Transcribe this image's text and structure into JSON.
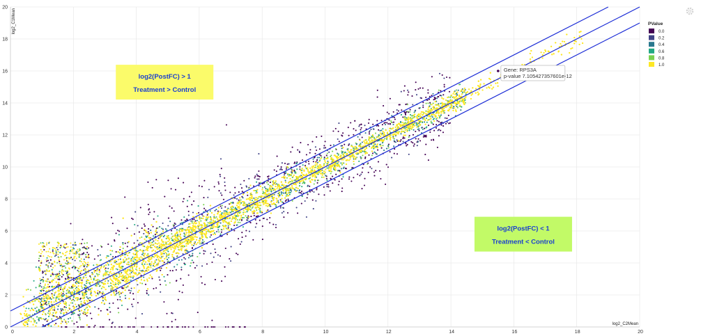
{
  "chart_data": {
    "type": "scatter",
    "xlabel": "log2_C2Mean",
    "ylabel": "log2_C1Mean",
    "xlim": [
      0,
      20
    ],
    "ylim": [
      0,
      20
    ],
    "xticks": [
      "0",
      "2",
      "4",
      "6",
      "8",
      "10",
      "12",
      "14",
      "16",
      "18",
      "20"
    ],
    "yticks": [
      "0",
      "2",
      "4",
      "6",
      "8",
      "10",
      "12",
      "14",
      "16",
      "18",
      "20"
    ],
    "grid": true,
    "lines": [
      {
        "intercept": 1,
        "slope": 1
      },
      {
        "intercept": 0,
        "slope": 1
      },
      {
        "intercept": -1,
        "slope": 1
      }
    ],
    "legend": {
      "title": "PValue",
      "placement": "top-right",
      "entries": [
        {
          "label": "0.0",
          "color": "#440154"
        },
        {
          "label": "0.2",
          "color": "#414487"
        },
        {
          "label": "0.4",
          "color": "#2a788e"
        },
        {
          "label": "0.6",
          "color": "#22a884"
        },
        {
          "label": "0.8",
          "color": "#7ad151"
        },
        {
          "label": "1.0",
          "color": "#fde725"
        }
      ]
    },
    "annotations": [
      {
        "line1": "log2(PostFC) > 1",
        "line2": "Treatment > Control",
        "x": 4.9,
        "y": 15.3,
        "bg": "#fbfb6a"
      },
      {
        "line1": "log2(PostFC) < 1",
        "line2": "Treatment < Control",
        "x": 16.3,
        "y": 5.8,
        "bg": "#c2fa67"
      }
    ],
    "tooltip": {
      "gene": "Gene: RPS3A",
      "pvalue": "p-value 7.105427357601e-12",
      "x": 15.5,
      "y": 16.0
    },
    "density_note_points": 6500
  },
  "colors": {
    "line": "#1a2bd6",
    "grid": "#e4e4e4",
    "annotation_text": "#1a3fd0"
  },
  "icons": {
    "top_right": "gear-icon"
  }
}
